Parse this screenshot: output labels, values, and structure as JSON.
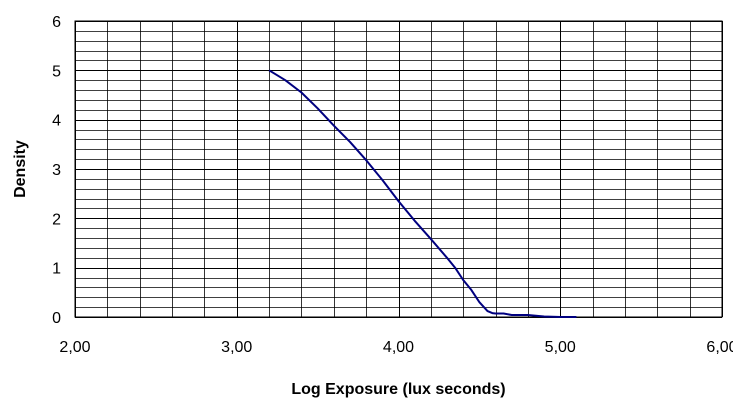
{
  "chart_data": {
    "type": "line",
    "title": "",
    "xlabel": "Log Exposure (lux seconds)",
    "ylabel": "Density",
    "xlim": [
      2.0,
      6.0
    ],
    "ylim": [
      0,
      6
    ],
    "x_ticks": [
      "2,00",
      "3,00",
      "4,00",
      "5,00",
      "6,00"
    ],
    "y_ticks": [
      "0",
      "1",
      "2",
      "3",
      "4",
      "5",
      "6"
    ],
    "grid": true,
    "x_minor_step": 0.2,
    "y_minor_step": 0.2,
    "legend": "none",
    "series": [
      {
        "color": "#000080",
        "x": [
          3.2,
          3.3,
          3.4,
          3.5,
          3.6,
          3.7,
          3.8,
          3.9,
          4.0,
          4.1,
          4.2,
          4.3,
          4.35,
          4.4,
          4.45,
          4.5,
          4.55,
          4.58,
          4.6,
          4.65,
          4.7,
          4.8,
          4.9,
          5.0,
          5.1
        ],
        "y": [
          5.0,
          4.8,
          4.55,
          4.23,
          3.88,
          3.55,
          3.18,
          2.78,
          2.35,
          1.95,
          1.58,
          1.2,
          1.0,
          0.75,
          0.55,
          0.3,
          0.12,
          0.08,
          0.07,
          0.07,
          0.04,
          0.04,
          0.01,
          0.0,
          0.0
        ]
      }
    ]
  }
}
